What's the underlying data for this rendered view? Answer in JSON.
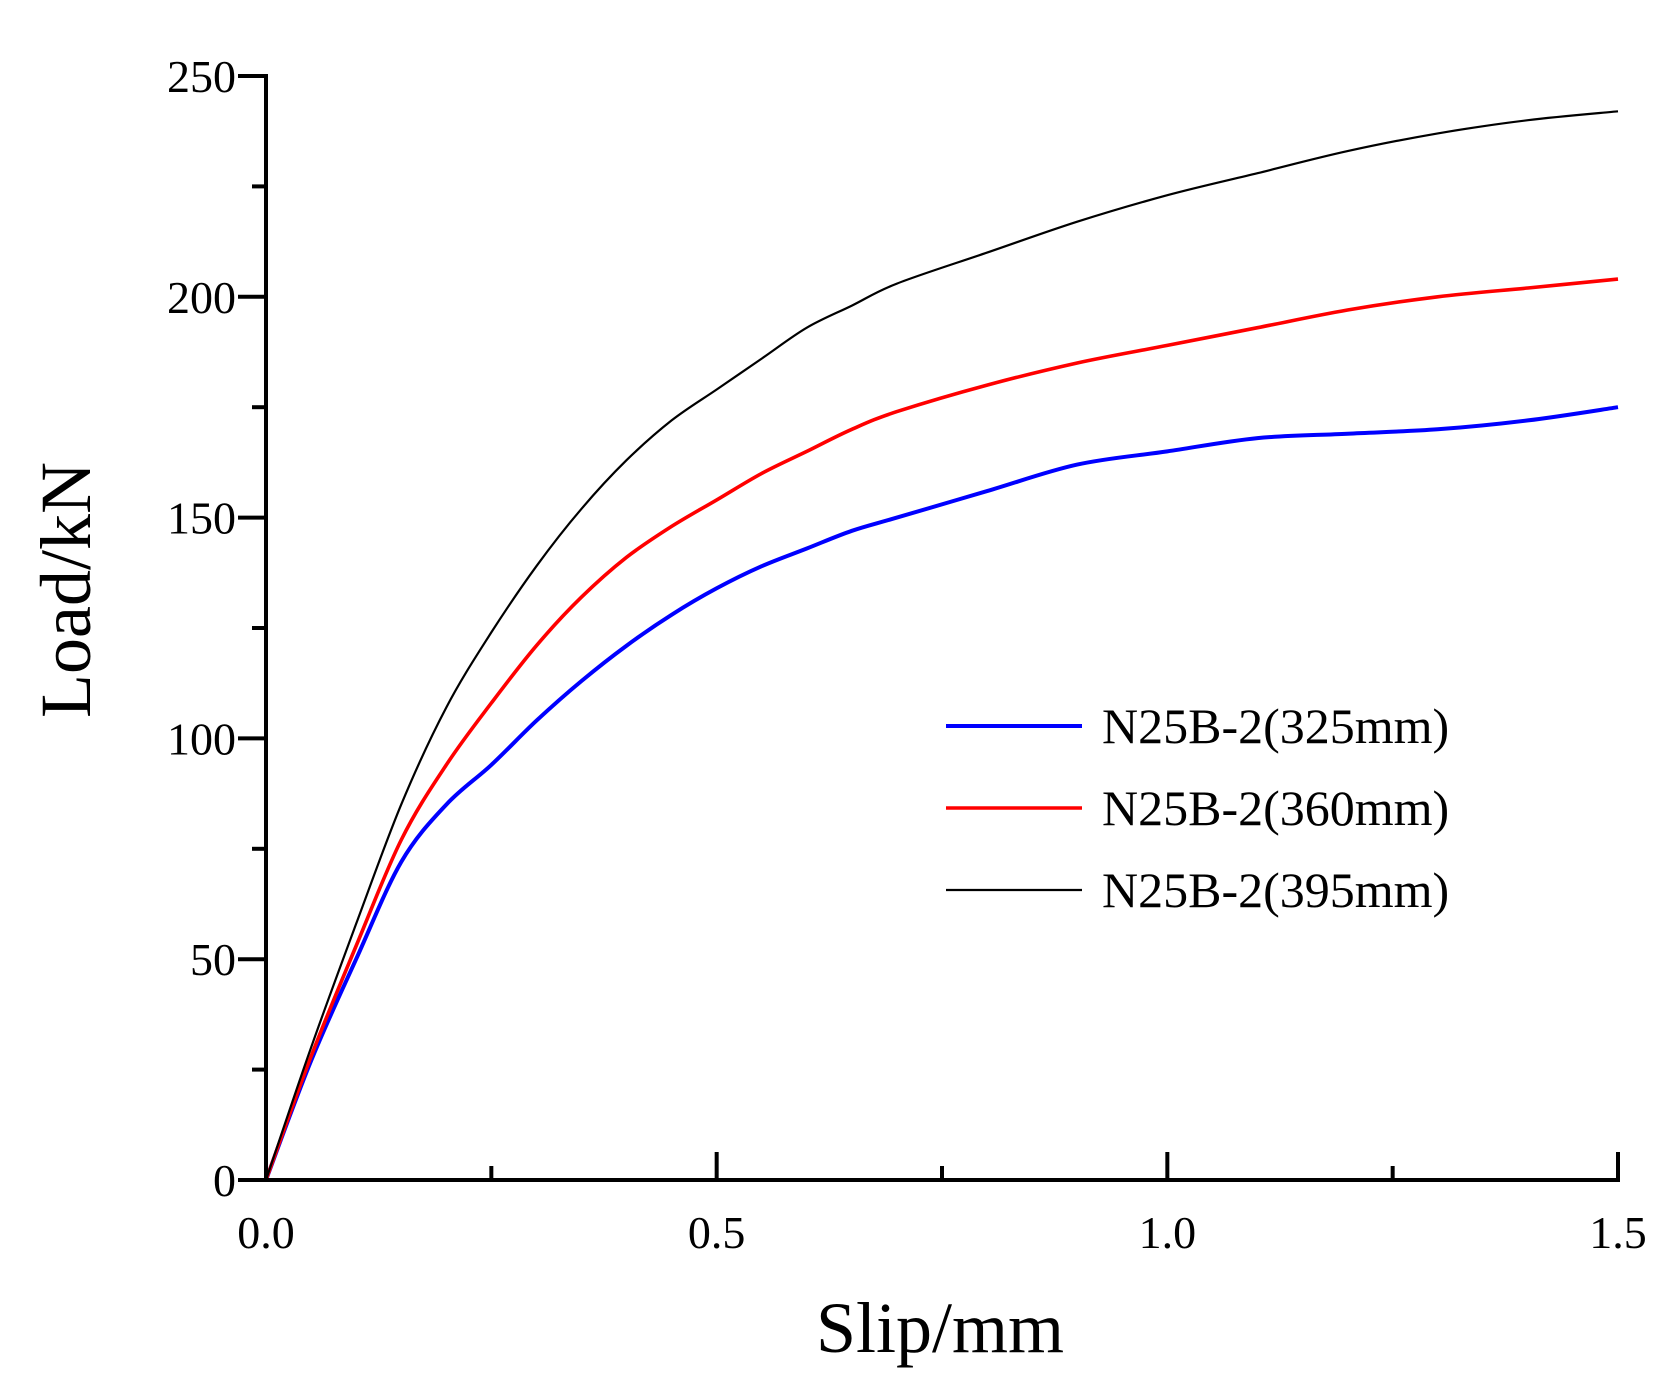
{
  "chart_data": {
    "type": "line",
    "title": "",
    "xlabel": "Slip/mm",
    "ylabel": "Load/kN",
    "xlim": [
      0,
      1.5
    ],
    "ylim": [
      0,
      250
    ],
    "xticks": [
      0.0,
      0.5,
      1.0,
      1.5
    ],
    "xtick_labels": [
      "0.0",
      "0.5",
      "1.0",
      "1.5"
    ],
    "x_minor_ticks": [
      0.25,
      0.75,
      1.25
    ],
    "yticks": [
      0,
      50,
      100,
      150,
      200,
      250
    ],
    "ytick_labels": [
      "0",
      "50",
      "100",
      "150",
      "200",
      "250"
    ],
    "y_minor_ticks": [
      25,
      75,
      125,
      175,
      225
    ],
    "grid": false,
    "legend_position": "center-right",
    "series": [
      {
        "name": "N25B-2(325mm)",
        "color": "#0000ff",
        "x": [
          0,
          0.05,
          0.1,
          0.15,
          0.2,
          0.25,
          0.3,
          0.35,
          0.4,
          0.45,
          0.5,
          0.55,
          0.6,
          0.65,
          0.7,
          0.8,
          0.9,
          1.0,
          1.1,
          1.2,
          1.3,
          1.4,
          1.5
        ],
        "y": [
          0,
          27,
          50,
          72,
          85,
          94,
          104,
          113,
          121,
          128,
          134,
          139,
          143,
          147,
          150,
          156,
          162,
          165,
          168,
          169,
          170,
          172,
          175
        ]
      },
      {
        "name": "N25B-2(360mm)",
        "color": "#ff0000",
        "x": [
          0,
          0.05,
          0.1,
          0.15,
          0.2,
          0.25,
          0.3,
          0.35,
          0.4,
          0.45,
          0.5,
          0.55,
          0.6,
          0.65,
          0.7,
          0.8,
          0.9,
          1.0,
          1.1,
          1.2,
          1.3,
          1.4,
          1.5
        ],
        "y": [
          0,
          28,
          53,
          77,
          94,
          108,
          121,
          132,
          141,
          148,
          154,
          160,
          165,
          170,
          174,
          180,
          185,
          189,
          193,
          197,
          200,
          202,
          204
        ]
      },
      {
        "name": "N25B-2(395mm)",
        "color": "#000000",
        "x": [
          0,
          0.05,
          0.1,
          0.15,
          0.2,
          0.25,
          0.3,
          0.35,
          0.4,
          0.45,
          0.5,
          0.55,
          0.6,
          0.65,
          0.7,
          0.8,
          0.9,
          1.0,
          1.1,
          1.2,
          1.3,
          1.4,
          1.5
        ],
        "y": [
          0,
          30,
          58,
          85,
          107,
          124,
          139,
          152,
          163,
          172,
          179,
          186,
          193,
          198,
          203,
          210,
          217,
          223,
          228,
          233,
          237,
          240,
          242
        ]
      }
    ]
  }
}
